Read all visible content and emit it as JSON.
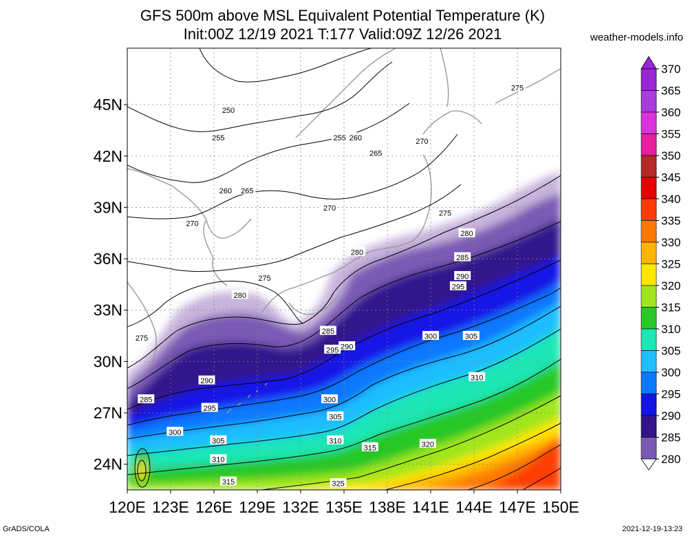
{
  "header": {
    "title_line1": "GFS 500m above MSL Equivalent Potential Temperature (K)",
    "title_line2": "Init:00Z 12/19 2021 T:177 Valid:09Z 12/26 2021",
    "brand": "weather-models.info"
  },
  "axes": {
    "lat_labels": [
      "24N",
      "27N",
      "30N",
      "33N",
      "36N",
      "39N",
      "42N",
      "45N"
    ],
    "lat_values": [
      24,
      27,
      30,
      33,
      36,
      39,
      42,
      45
    ],
    "lon_labels": [
      "120E",
      "123E",
      "126E",
      "129E",
      "132E",
      "135E",
      "138E",
      "141E",
      "144E",
      "147E",
      "150E"
    ],
    "lon_values": [
      120,
      123,
      126,
      129,
      132,
      135,
      138,
      141,
      144,
      147,
      150
    ],
    "lat_range": [
      22.5,
      48.3
    ],
    "lon_range": [
      120,
      150
    ]
  },
  "colorbar": {
    "labels": [
      "370",
      "365",
      "360",
      "355",
      "350",
      "345",
      "340",
      "335",
      "330",
      "325",
      "320",
      "315",
      "310",
      "305",
      "300",
      "295",
      "290",
      "285",
      "280"
    ],
    "colors": [
      "#9a24d6",
      "#a83cdc",
      "#dc32dc",
      "#e61ea0",
      "#b42828",
      "#e60000",
      "#ff3c00",
      "#ff7800",
      "#ffb400",
      "#ffe600",
      "#a0e61e",
      "#28c828",
      "#1ee6b4",
      "#1ebeff",
      "#0a78ff",
      "#1414e6",
      "#32148c",
      "#7a5ab4",
      "#c8b4dc"
    ]
  },
  "contour_labels": [
    {
      "text": "250",
      "lon": 127.0,
      "lat": 44.7
    },
    {
      "text": "255",
      "lon": 126.3,
      "lat": 43.1
    },
    {
      "text": "255",
      "lon": 134.7,
      "lat": 43.1
    },
    {
      "text": "260",
      "lon": 135.8,
      "lat": 43.1
    },
    {
      "text": "265",
      "lon": 137.2,
      "lat": 42.2
    },
    {
      "text": "270",
      "lon": 140.4,
      "lat": 42.9
    },
    {
      "text": "275",
      "lon": 147.0,
      "lat": 46.0
    },
    {
      "text": "260",
      "lon": 126.8,
      "lat": 40.0
    },
    {
      "text": "265",
      "lon": 128.3,
      "lat": 40.0
    },
    {
      "text": "270",
      "lon": 134.0,
      "lat": 39.0
    },
    {
      "text": "270",
      "lon": 124.5,
      "lat": 38.1
    },
    {
      "text": "275",
      "lon": 142.0,
      "lat": 38.7
    },
    {
      "text": "280",
      "lon": 143.5,
      "lat": 37.5
    },
    {
      "text": "280",
      "lon": 135.9,
      "lat": 36.4
    },
    {
      "text": "285",
      "lon": 143.2,
      "lat": 36.1
    },
    {
      "text": "290",
      "lon": 143.2,
      "lat": 35.0
    },
    {
      "text": "295",
      "lon": 142.9,
      "lat": 34.4
    },
    {
      "text": "275",
      "lon": 129.5,
      "lat": 34.9
    },
    {
      "text": "280",
      "lon": 127.8,
      "lat": 33.9
    },
    {
      "text": "285",
      "lon": 133.9,
      "lat": 31.8
    },
    {
      "text": "290",
      "lon": 135.2,
      "lat": 30.9
    },
    {
      "text": "295",
      "lon": 134.2,
      "lat": 30.7
    },
    {
      "text": "300",
      "lon": 141.0,
      "lat": 31.5
    },
    {
      "text": "305",
      "lon": 143.8,
      "lat": 31.5
    },
    {
      "text": "275",
      "lon": 121.0,
      "lat": 31.4
    },
    {
      "text": "290",
      "lon": 125.5,
      "lat": 28.9
    },
    {
      "text": "285",
      "lon": 121.3,
      "lat": 27.8
    },
    {
      "text": "295",
      "lon": 125.7,
      "lat": 27.3
    },
    {
      "text": "300",
      "lon": 123.3,
      "lat": 25.9
    },
    {
      "text": "300",
      "lon": 134.0,
      "lat": 27.8
    },
    {
      "text": "305",
      "lon": 134.4,
      "lat": 26.8
    },
    {
      "text": "310",
      "lon": 144.2,
      "lat": 29.1
    },
    {
      "text": "305",
      "lon": 126.3,
      "lat": 25.4
    },
    {
      "text": "310",
      "lon": 126.3,
      "lat": 24.3
    },
    {
      "text": "310",
      "lon": 134.4,
      "lat": 25.4
    },
    {
      "text": "315",
      "lon": 136.8,
      "lat": 25.0
    },
    {
      "text": "320",
      "lon": 140.8,
      "lat": 25.2
    },
    {
      "text": "315",
      "lon": 127.0,
      "lat": 23.0
    },
    {
      "text": "325",
      "lon": 134.6,
      "lat": 22.9
    }
  ],
  "footer": {
    "left": "GrADS/COLA",
    "right": "2021-12-19-13:23"
  }
}
